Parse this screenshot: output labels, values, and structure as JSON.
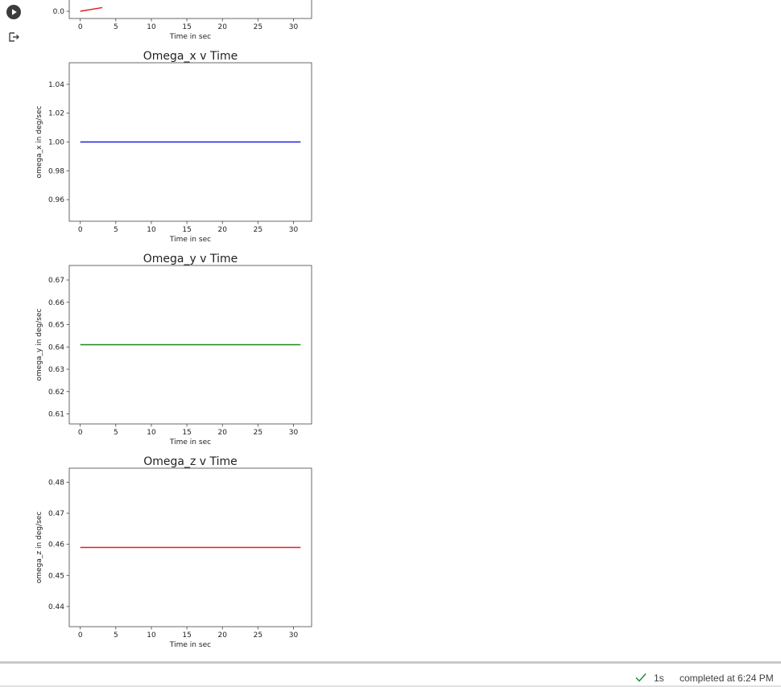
{
  "colors": {
    "blue": "#1f1fdc",
    "green": "#1b8a1b",
    "red": "#e02020",
    "run_button_bg": "#3c3c3c",
    "check_green": "#1e8e3e"
  },
  "icons": {
    "run": "play-circle-icon",
    "output": "output-exit-icon",
    "status": "check-icon"
  },
  "chart_data": [
    {
      "type": "line",
      "partial": true,
      "title": "",
      "xlabel": "Time in sec",
      "ylabel": "",
      "xlim": [
        -1.55,
        32.55
      ],
      "xticks": [
        0,
        5,
        10,
        15,
        20,
        25,
        30
      ],
      "xtick_labels": [
        "0",
        "5",
        "10",
        "15",
        "20",
        "25",
        "30"
      ],
      "yticks": [
        0.0
      ],
      "ytick_labels": [
        "0.0"
      ],
      "series": [
        {
          "color": "#e02020",
          "x": [
            0,
            3.1
          ],
          "y": [
            0.0,
            0.02
          ]
        }
      ]
    },
    {
      "type": "line",
      "title": "Omega_x v Time",
      "xlabel": "Time in sec",
      "ylabel": "omega_x in deg/sec",
      "xlim": [
        -1.55,
        32.55
      ],
      "ylim": [
        0.945,
        1.055
      ],
      "xticks": [
        0,
        5,
        10,
        15,
        20,
        25,
        30
      ],
      "xtick_labels": [
        "0",
        "5",
        "10",
        "15",
        "20",
        "25",
        "30"
      ],
      "yticks": [
        0.96,
        0.98,
        1.0,
        1.02,
        1.04
      ],
      "ytick_labels": [
        "0.96",
        "0.98",
        "1.00",
        "1.02",
        "1.04"
      ],
      "series": [
        {
          "color": "#1f1fdc",
          "x": [
            0,
            31
          ],
          "y": [
            1.0,
            1.0
          ]
        }
      ]
    },
    {
      "type": "line",
      "title": "Omega_y v Time",
      "xlabel": "Time in sec",
      "ylabel": "omega_y in deg/sec",
      "xlim": [
        -1.55,
        32.55
      ],
      "ylim": [
        0.6055,
        0.6765
      ],
      "xticks": [
        0,
        5,
        10,
        15,
        20,
        25,
        30
      ],
      "xtick_labels": [
        "0",
        "5",
        "10",
        "15",
        "20",
        "25",
        "30"
      ],
      "yticks": [
        0.61,
        0.62,
        0.63,
        0.64,
        0.65,
        0.66,
        0.67
      ],
      "ytick_labels": [
        "0.61",
        "0.62",
        "0.63",
        "0.64",
        "0.65",
        "0.66",
        "0.67"
      ],
      "series": [
        {
          "color": "#1b8a1b",
          "x": [
            0,
            31
          ],
          "y": [
            0.641,
            0.641
          ]
        }
      ]
    },
    {
      "type": "line",
      "title": "Omega_z v Time",
      "xlabel": "Time in sec",
      "ylabel": "omega_z in deg/sec",
      "xlim": [
        -1.55,
        32.55
      ],
      "ylim": [
        0.4335,
        0.4845
      ],
      "xticks": [
        0,
        5,
        10,
        15,
        20,
        25,
        30
      ],
      "xtick_labels": [
        "0",
        "5",
        "10",
        "15",
        "20",
        "25",
        "30"
      ],
      "yticks": [
        0.44,
        0.45,
        0.46,
        0.47,
        0.48
      ],
      "ytick_labels": [
        "0.44",
        "0.45",
        "0.46",
        "0.47",
        "0.48"
      ],
      "series": [
        {
          "color": "#e02020",
          "x": [
            0,
            31
          ],
          "y": [
            0.459,
            0.459
          ]
        }
      ]
    }
  ],
  "status": {
    "duration": "1s",
    "message": "completed at 6:24 PM"
  }
}
